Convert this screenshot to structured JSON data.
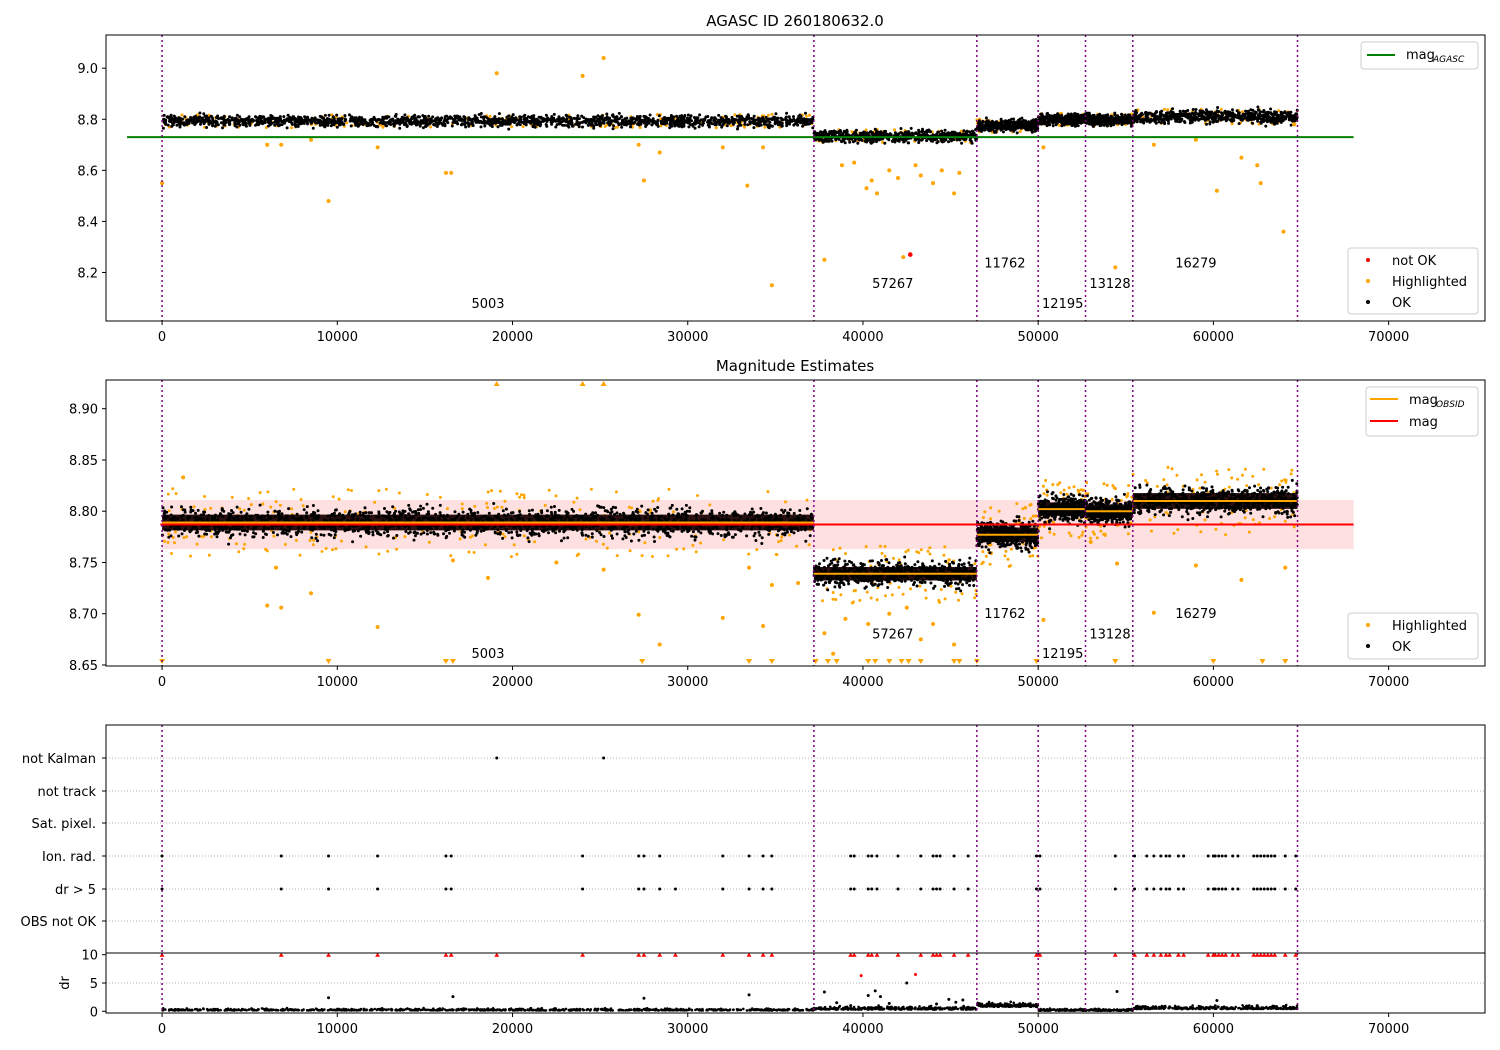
{
  "chart_data": [
    {
      "id": "panel1",
      "type": "scatter",
      "title": "AGASC ID 260180632.0",
      "xlim": [
        -3200,
        75500
      ],
      "ylim": [
        8.01,
        9.13
      ],
      "xticks": [
        0,
        10000,
        20000,
        30000,
        40000,
        50000,
        60000,
        70000
      ],
      "yticks": [
        8.2,
        8.4,
        8.6,
        8.8,
        9.0
      ],
      "ytick_labels": [
        "8.2",
        "8.4",
        "8.6",
        "8.8",
        "9.0"
      ],
      "obsid_boundaries": [
        0,
        37200,
        46500,
        50000,
        52700,
        55400,
        64800
      ],
      "obsid_labels": [
        {
          "text": "5003",
          "x": 18600,
          "y": 8.06
        },
        {
          "text": "57267",
          "x": 41700,
          "y": 8.14
        },
        {
          "text": "11762",
          "x": 48100,
          "y": 8.22
        },
        {
          "text": "12195",
          "x": 51400,
          "y": 8.06
        },
        {
          "text": "13128",
          "x": 54100,
          "y": 8.14
        },
        {
          "text": "16279",
          "x": 59000,
          "y": 8.22
        }
      ],
      "ref_line": {
        "y": 8.73,
        "x_end": 68000,
        "color": "#008000"
      },
      "segments": [
        {
          "x0": 0,
          "x1": 37200,
          "mean": 8.793,
          "spread": 0.022
        },
        {
          "x0": 37200,
          "x1": 46500,
          "mean": 8.733,
          "spread": 0.022
        },
        {
          "x0": 46500,
          "x1": 50000,
          "mean": 8.775,
          "spread": 0.022
        },
        {
          "x0": 50000,
          "x1": 52700,
          "mean": 8.8,
          "spread": 0.02
        },
        {
          "x0": 52700,
          "x1": 55400,
          "mean": 8.797,
          "spread": 0.02
        },
        {
          "x0": 55400,
          "x1": 64800,
          "mean": 8.81,
          "spread": 0.025
        }
      ],
      "highlighted_points": [
        [
          0,
          8.55
        ],
        [
          6000,
          8.7
        ],
        [
          6800,
          8.7
        ],
        [
          8500,
          8.72
        ],
        [
          9500,
          8.48
        ],
        [
          12300,
          8.69
        ],
        [
          16200,
          8.59
        ],
        [
          16500,
          8.59
        ],
        [
          19100,
          8.98
        ],
        [
          24000,
          8.97
        ],
        [
          25200,
          9.04
        ],
        [
          27200,
          8.7
        ],
        [
          27500,
          8.56
        ],
        [
          28400,
          8.67
        ],
        [
          32000,
          8.69
        ],
        [
          33400,
          8.54
        ],
        [
          34300,
          8.69
        ],
        [
          34800,
          8.15
        ],
        [
          37800,
          8.25
        ],
        [
          38800,
          8.62
        ],
        [
          39500,
          8.63
        ],
        [
          40200,
          8.53
        ],
        [
          40500,
          8.56
        ],
        [
          40800,
          8.51
        ],
        [
          41500,
          8.6
        ],
        [
          42000,
          8.57
        ],
        [
          42300,
          8.26
        ],
        [
          43000,
          8.62
        ],
        [
          43300,
          8.58
        ],
        [
          44000,
          8.55
        ],
        [
          44500,
          8.6
        ],
        [
          45200,
          8.51
        ],
        [
          45500,
          8.59
        ],
        [
          50300,
          8.69
        ],
        [
          54400,
          8.22
        ],
        [
          56600,
          8.7
        ],
        [
          59000,
          8.72
        ],
        [
          60200,
          8.52
        ],
        [
          61600,
          8.65
        ],
        [
          62500,
          8.62
        ],
        [
          62700,
          8.55
        ],
        [
          64000,
          8.36
        ],
        [
          64600,
          8.78
        ]
      ],
      "not_ok_points": [
        [
          42700,
          8.27
        ]
      ],
      "legend_top": [
        {
          "label": "mag",
          "sub": "AGASC",
          "color": "#008000"
        }
      ],
      "legend_bottom": [
        {
          "label": "not OK",
          "color": "#ff0000"
        },
        {
          "label": "Highlighted",
          "color": "#ffa500"
        },
        {
          "label": "OK",
          "color": "#000000"
        }
      ]
    },
    {
      "id": "panel2",
      "type": "scatter",
      "title": "Magnitude Estimates",
      "xlim": [
        -3200,
        75500
      ],
      "ylim": [
        8.649,
        8.928
      ],
      "xticks": [
        0,
        10000,
        20000,
        30000,
        40000,
        50000,
        60000,
        70000
      ],
      "yticks": [
        8.65,
        8.7,
        8.75,
        8.8,
        8.85,
        8.9
      ],
      "ytick_labels": [
        "8.65",
        "8.70",
        "8.75",
        "8.80",
        "8.85",
        "8.90"
      ],
      "obsid_boundaries": [
        0,
        37200,
        46500,
        50000,
        52700,
        55400,
        64800
      ],
      "obsid_labels": [
        {
          "text": "5003",
          "x": 18600,
          "y": 8.657
        },
        {
          "text": "57267",
          "x": 41700,
          "y": 8.676
        },
        {
          "text": "11762",
          "x": 48100,
          "y": 8.696
        },
        {
          "text": "12195",
          "x": 51400,
          "y": 8.657
        },
        {
          "text": "13128",
          "x": 54100,
          "y": 8.676
        },
        {
          "text": "16279",
          "x": 59000,
          "y": 8.696
        }
      ],
      "mag_line": {
        "y": 8.787,
        "band": [
          8.763,
          8.811
        ],
        "x_end": 68000,
        "color": "#ff0000"
      },
      "segments": [
        {
          "x0": 0,
          "x1": 37200,
          "mean": 8.789,
          "spread": 0.014
        },
        {
          "x0": 37200,
          "x1": 46500,
          "mean": 8.739,
          "spread": 0.012
        },
        {
          "x0": 46500,
          "x1": 50000,
          "mean": 8.777,
          "spread": 0.013
        },
        {
          "x0": 50000,
          "x1": 52700,
          "mean": 8.802,
          "spread": 0.012
        },
        {
          "x0": 52700,
          "x1": 55400,
          "mean": 8.8,
          "spread": 0.012
        },
        {
          "x0": 55400,
          "x1": 64800,
          "mean": 8.81,
          "spread": 0.014
        }
      ],
      "highlighted_points": [
        [
          1200,
          8.833
        ],
        [
          6000,
          8.708
        ],
        [
          6500,
          8.745
        ],
        [
          6800,
          8.706
        ],
        [
          8500,
          8.72
        ],
        [
          12300,
          8.687
        ],
        [
          16600,
          8.752
        ],
        [
          18600,
          8.735
        ],
        [
          22500,
          8.75
        ],
        [
          25200,
          8.743
        ],
        [
          27200,
          8.699
        ],
        [
          28400,
          8.67
        ],
        [
          32000,
          8.696
        ],
        [
          33500,
          8.745
        ],
        [
          34300,
          8.688
        ],
        [
          34800,
          8.728
        ],
        [
          36300,
          8.73
        ],
        [
          37800,
          8.681
        ],
        [
          38300,
          8.661
        ],
        [
          39000,
          8.695
        ],
        [
          40300,
          8.69
        ],
        [
          41500,
          8.7
        ],
        [
          42500,
          8.706
        ],
        [
          43300,
          8.675
        ],
        [
          44000,
          8.69
        ],
        [
          45200,
          8.67
        ],
        [
          50300,
          8.694
        ],
        [
          53000,
          8.77
        ],
        [
          54500,
          8.749
        ],
        [
          56600,
          8.701
        ],
        [
          59000,
          8.747
        ],
        [
          61600,
          8.733
        ],
        [
          64100,
          8.745
        ]
      ],
      "down_markers": [
        0,
        9500,
        16200,
        16600,
        27400,
        33500,
        34800,
        37300,
        38000,
        38500,
        40300,
        40700,
        41500,
        42200,
        42600,
        43300,
        45200,
        45500,
        46500,
        49900,
        54400,
        60000,
        62800,
        64100
      ],
      "up_markers": [
        19100,
        24000,
        25200
      ],
      "legend_top": [
        {
          "label": "mag",
          "sub": "OBSID",
          "color": "#ffa500"
        },
        {
          "label": "mag",
          "sub": "",
          "color": "#ff0000"
        }
      ],
      "legend_bottom": [
        {
          "label": "Highlighted",
          "color": "#ffa500"
        },
        {
          "label": "OK",
          "color": "#000000"
        }
      ]
    },
    {
      "id": "panel3",
      "type": "scatter",
      "xlim": [
        -3200,
        75500
      ],
      "xticks": [
        0,
        10000,
        20000,
        30000,
        40000,
        50000,
        60000,
        70000
      ],
      "flag_labels": [
        "not Kalman",
        "not track",
        "Sat. pixel.",
        "Ion. rad.",
        "dr > 5",
        "OBS not OK"
      ],
      "obsid_boundaries": [
        0,
        37200,
        46500,
        50000,
        52700,
        55400,
        64800
      ],
      "not_kalman_x": [
        19100,
        25200
      ],
      "ion_rad_x": [
        0,
        6800,
        9500,
        12300,
        16200,
        16500,
        24000,
        27200,
        27500,
        28400,
        32000,
        33500,
        34300,
        34800,
        39300,
        39500,
        40300,
        40500,
        40800,
        42000,
        43300,
        44000,
        44200,
        44400,
        45200,
        46000,
        49900,
        50100,
        54400,
        55500,
        56200,
        56600,
        57000,
        57300,
        57500,
        58000,
        58300,
        59700,
        60000,
        60100,
        60300,
        60500,
        60700,
        61100,
        61400,
        62300,
        62500,
        62700,
        62900,
        63100,
        63300,
        63500,
        64100,
        64700
      ],
      "dr_gt5_x": [
        0,
        6800,
        9500,
        12300,
        16200,
        16500,
        24000,
        27200,
        27500,
        28400,
        29300,
        32000,
        33500,
        34300,
        34800,
        39300,
        39500,
        40300,
        40500,
        40800,
        42000,
        43300,
        44000,
        44200,
        44400,
        45200,
        46000,
        49900,
        50100,
        54400,
        55500,
        56200,
        56600,
        57000,
        57300,
        57500,
        58000,
        58300,
        59700,
        60000,
        60100,
        60300,
        60500,
        60700,
        61100,
        61400,
        62300,
        62500,
        62700,
        62900,
        63100,
        63300,
        63500,
        64100,
        64700
      ]
    },
    {
      "id": "panel4",
      "type": "scatter",
      "ylabel": "dr",
      "xlim": [
        -3200,
        75500
      ],
      "ylim": [
        -0.3,
        10.3
      ],
      "xticks": [
        0,
        10000,
        20000,
        30000,
        40000,
        50000,
        60000,
        70000
      ],
      "xtick_labels": [
        "0",
        "10000",
        "20000",
        "30000",
        "40000",
        "50000",
        "60000",
        "70000"
      ],
      "yticks": [
        0,
        5,
        10
      ],
      "ytick_labels": [
        "0",
        "5",
        "10"
      ],
      "obsid_boundaries": [
        0,
        37200,
        46500,
        50000,
        52700,
        55400,
        64800
      ],
      "capped_x": [
        0,
        6800,
        9500,
        12300,
        16200,
        16500,
        19100,
        24000,
        27200,
        27500,
        28400,
        29300,
        32000,
        33500,
        34300,
        34800,
        39300,
        39500,
        40300,
        40500,
        40800,
        42000,
        43300,
        44000,
        44200,
        44400,
        45200,
        46000,
        49900,
        50100,
        54400,
        55500,
        56200,
        56600,
        57000,
        57300,
        57500,
        58000,
        58300,
        59700,
        60000,
        60100,
        60300,
        60500,
        60700,
        61100,
        61400,
        62300,
        62500,
        62700,
        62900,
        63100,
        63300,
        63500,
        64100,
        64700
      ],
      "outliers": [
        [
          9500,
          2.4
        ],
        [
          16600,
          2.6
        ],
        [
          27500,
          2.3
        ],
        [
          33500,
          2.9
        ],
        [
          37800,
          3.4
        ],
        [
          38500,
          1.5
        ],
        [
          39300,
          1.0
        ],
        [
          39900,
          6.3
        ],
        [
          40300,
          2.8
        ],
        [
          40700,
          3.6
        ],
        [
          41000,
          2.6
        ],
        [
          41500,
          1.4
        ],
        [
          42500,
          5.0
        ],
        [
          43000,
          6.5
        ],
        [
          44200,
          1.3
        ],
        [
          44900,
          2.1
        ],
        [
          45300,
          1.6
        ],
        [
          45700,
          2.0
        ],
        [
          49900,
          0.8
        ],
        [
          54500,
          3.5
        ],
        [
          56600,
          0.6
        ],
        [
          60200,
          1.9
        ],
        [
          62500,
          1.0
        ]
      ],
      "segments": [
        {
          "x0": 0,
          "x1": 37200,
          "base": 0.15,
          "spread": 0.3
        },
        {
          "x0": 37200,
          "x1": 46500,
          "base": 0.3,
          "spread": 0.5
        },
        {
          "x0": 46500,
          "x1": 50000,
          "base": 0.8,
          "spread": 0.6
        },
        {
          "x0": 50000,
          "x1": 55400,
          "base": 0.1,
          "spread": 0.3
        },
        {
          "x0": 55400,
          "x1": 64800,
          "base": 0.4,
          "spread": 0.5
        }
      ]
    }
  ]
}
